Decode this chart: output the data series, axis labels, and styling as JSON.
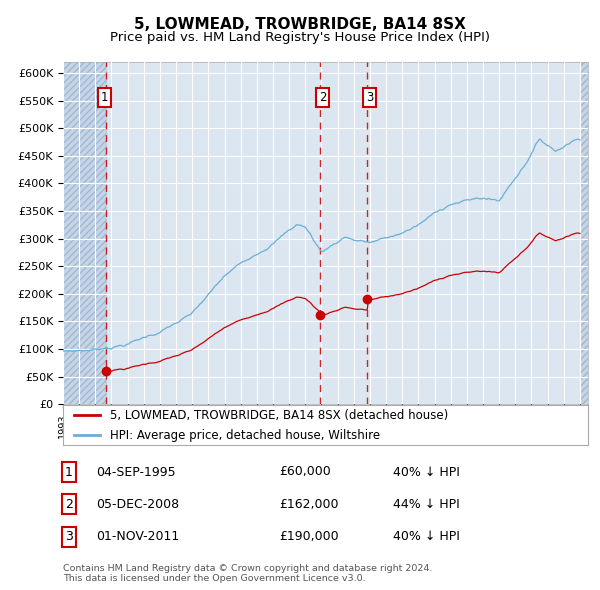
{
  "title": "5, LOWMEAD, TROWBRIDGE, BA14 8SX",
  "subtitle": "Price paid vs. HM Land Registry's House Price Index (HPI)",
  "ylim": [
    0,
    620000
  ],
  "yticks": [
    0,
    50000,
    100000,
    150000,
    200000,
    250000,
    300000,
    350000,
    400000,
    450000,
    500000,
    550000,
    600000
  ],
  "xlim_start": 1993.0,
  "xlim_end": 2025.5,
  "hpi_color": "#6baed6",
  "price_color": "#cc0000",
  "bg_color": "#dce6f1",
  "hatch_color": "#c5d5e8",
  "grid_color": "#ffffff",
  "purchases": [
    {
      "date_num": 1995.67,
      "price": 60000,
      "label": "1"
    },
    {
      "date_num": 2008.92,
      "price": 162000,
      "label": "2"
    },
    {
      "date_num": 2011.83,
      "price": 190000,
      "label": "3"
    }
  ],
  "vline_dates": [
    1995.67,
    2008.92,
    2011.83
  ],
  "legend_entries": [
    "5, LOWMEAD, TROWBRIDGE, BA14 8SX (detached house)",
    "HPI: Average price, detached house, Wiltshire"
  ],
  "table_data": [
    [
      "1",
      "04-SEP-1995",
      "£60,000",
      "40% ↓ HPI"
    ],
    [
      "2",
      "05-DEC-2008",
      "£162,000",
      "44% ↓ HPI"
    ],
    [
      "3",
      "01-NOV-2011",
      "£190,000",
      "40% ↓ HPI"
    ]
  ],
  "footnote": "Contains HM Land Registry data © Crown copyright and database right 2024.\nThis data is licensed under the Open Government Licence v3.0.",
  "title_fontsize": 11,
  "subtitle_fontsize": 9.5
}
